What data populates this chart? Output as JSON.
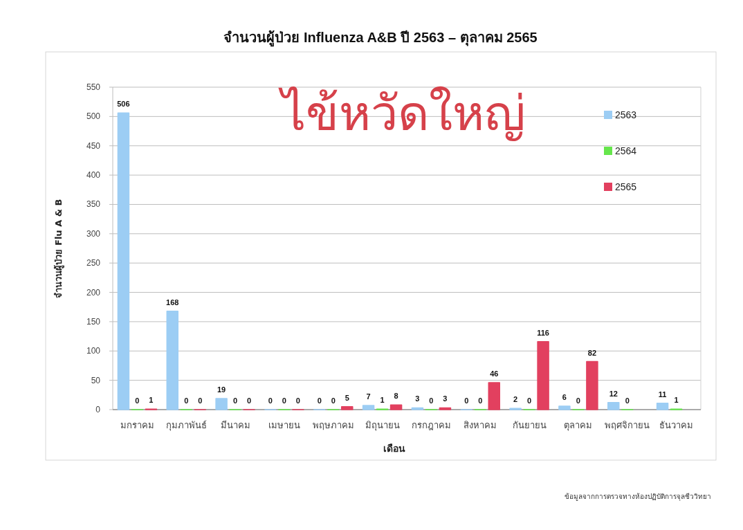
{
  "chart_data": {
    "type": "bar",
    "title": "จำนวนผู้ป่วย Influenza A&B ปี 2563 – ตุลาคม 2565",
    "xlabel": "เดือน",
    "ylabel": "จำนวนผู้ป่วย Flu A & B",
    "categories": [
      "มกราคม",
      "กุมภาพันธ์",
      "มีนาคม",
      "เมษายน",
      "พฤษภาคม",
      "มิถุนายน",
      "กรกฎาคม",
      "สิงหาคม",
      "กันยายน",
      "ตุลาคม",
      "พฤศจิกายน",
      "ธันวาคม"
    ],
    "series": [
      {
        "name": "2563",
        "color": "#9ccdf4",
        "values": [
          506,
          168,
          19,
          0,
          0,
          7,
          3,
          0,
          2,
          6,
          12,
          11
        ]
      },
      {
        "name": "2564",
        "color": "#66e64c",
        "values": [
          0,
          0,
          0,
          0,
          0,
          1,
          0,
          0,
          0,
          0,
          0,
          1
        ]
      },
      {
        "name": "2565",
        "color": "#e2405f",
        "values": [
          1,
          0,
          0,
          0,
          5,
          8,
          3,
          46,
          116,
          82,
          null,
          null
        ]
      }
    ],
    "ylim": [
      0,
      550
    ],
    "yticks": [
      0,
      50,
      100,
      150,
      200,
      250,
      300,
      350,
      400,
      450,
      500,
      550
    ],
    "grid": "y",
    "legend": "top right",
    "data_labels": true,
    "annotations": [
      "ไข้หวัดใหญ่",
      "ข้อมูลจากการตรวจทางห้องปฏิบัติการจุลชีววิทยา"
    ]
  }
}
